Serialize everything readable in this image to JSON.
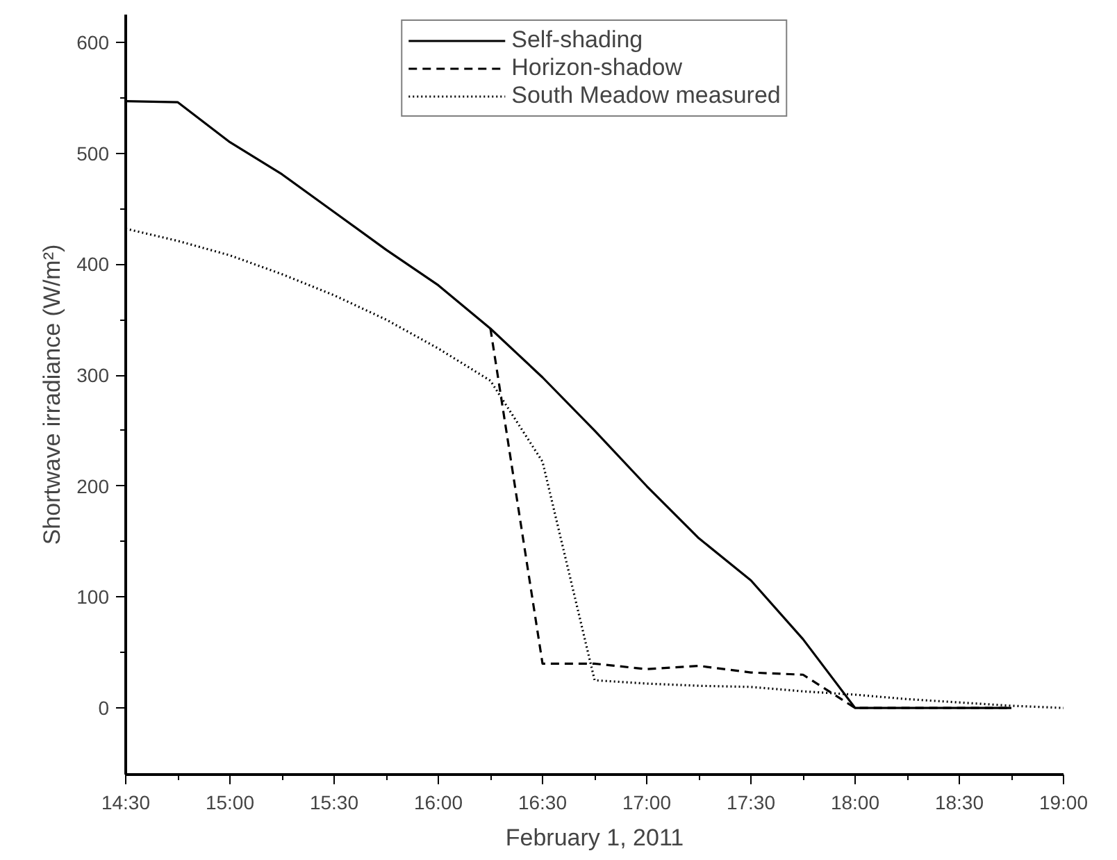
{
  "chart_data": {
    "type": "line",
    "xlabel": "February 1, 2011",
    "ylabel": "Shortwave irradiance (W/m²)",
    "xlim": [
      14.5,
      19
    ],
    "ylim": [
      -60,
      625
    ],
    "xticks": [
      {
        "value": 14.5,
        "label": "14:30"
      },
      {
        "value": 15,
        "label": "15:00"
      },
      {
        "value": 15.5,
        "label": "15:30"
      },
      {
        "value": 16,
        "label": "16:00"
      },
      {
        "value": 16.5,
        "label": "16:30"
      },
      {
        "value": 17,
        "label": "17:00"
      },
      {
        "value": 17.5,
        "label": "17:30"
      },
      {
        "value": 18,
        "label": "18:00"
      },
      {
        "value": 18.5,
        "label": "18:30"
      },
      {
        "value": 19,
        "label": "19:00"
      }
    ],
    "yticks": [
      0,
      100,
      200,
      300,
      400,
      500,
      600
    ],
    "grid": false,
    "legend": "top",
    "marker": "none",
    "series": [
      {
        "name": "Self-shading",
        "color": "#000000",
        "line_style": "solid",
        "x": [
          14.5,
          14.75,
          15,
          15.25,
          15.5,
          15.75,
          16,
          16.25,
          16.5,
          16.75,
          17,
          17.25,
          17.5,
          17.75,
          18,
          18.25,
          18.5,
          18.75
        ],
        "values": [
          547,
          546,
          510,
          481,
          447,
          413,
          381,
          342,
          298,
          250,
          200,
          153,
          115,
          62,
          0,
          0,
          0,
          0
        ]
      },
      {
        "name": "Horizon-shadow",
        "color": "#000000",
        "line_style": "dashed",
        "x": [
          16.25,
          16.5,
          16.75,
          17,
          17.25,
          17.5,
          17.75,
          18,
          18.25,
          18.5,
          18.75
        ],
        "values": [
          342,
          40,
          40,
          35,
          38,
          32,
          30,
          0,
          0,
          0,
          0
        ]
      },
      {
        "name": "South Meadow measured",
        "color": "#000000",
        "line_style": "dotted",
        "x": [
          14.5,
          14.75,
          15,
          15.25,
          15.5,
          15.75,
          16,
          16.25,
          16.5,
          16.75,
          17,
          17.25,
          17.5,
          17.75,
          18,
          18.25,
          18.5,
          18.75,
          19
        ],
        "values": [
          432,
          421,
          408,
          391,
          372,
          350,
          324,
          295,
          222,
          25,
          22,
          20,
          19,
          15,
          12,
          8,
          5,
          2,
          0
        ]
      }
    ]
  }
}
